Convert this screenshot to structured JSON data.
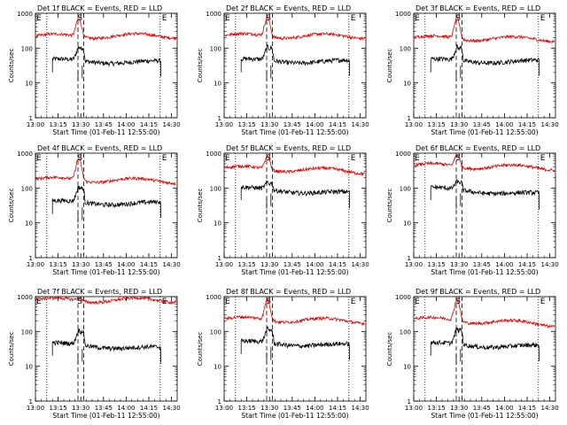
{
  "figure": {
    "start_time_label": "Start Time (01-Feb-11 12:55:00)",
    "ylabel": "Counts/sec",
    "series_names": [
      "Events",
      "LLD"
    ],
    "series_colors": {
      "events": "#000000",
      "lld": "#e00000"
    },
    "marker_letters": {
      "start": "S",
      "end": "E"
    }
  },
  "chart_data": [
    {
      "type": "line",
      "title": "Det 1f BLACK = Events, RED = LLD",
      "xlabel": "Start Time (01-Feb-11 12:55:00)",
      "ylabel": "Counts/sec",
      "x_tick_labels": [
        "13:00",
        "13:15",
        "13:30",
        "13:45",
        "14:00",
        "14:15",
        "14:30"
      ],
      "y_tick_labels": [
        "1",
        "10",
        "100",
        "1000"
      ],
      "ylim": [
        1,
        1000
      ],
      "xlim_minutes": [
        0,
        100
      ],
      "series": [
        {
          "name": "Events",
          "color": "#000000",
          "values": {
            "base": 45,
            "peak": 110,
            "end": 38
          }
        },
        {
          "name": "LLD",
          "color": "#e00000",
          "values": {
            "base": 220,
            "peak": 700,
            "end": 230
          }
        }
      ]
    },
    {
      "type": "line",
      "title": "Det 2f BLACK = Events, RED = LLD",
      "xlabel": "Start Time (01-Feb-11 12:55:00)",
      "ylabel": "Counts/sec",
      "x_tick_labels": [
        "13:00",
        "13:15",
        "13:30",
        "13:45",
        "14:00",
        "14:15",
        "14:30"
      ],
      "y_tick_labels": [
        "1",
        "10",
        "100",
        "1000"
      ],
      "ylim": [
        1,
        1000
      ],
      "xlim_minutes": [
        0,
        100
      ],
      "series": [
        {
          "name": "Events",
          "color": "#000000",
          "values": {
            "base": 45,
            "peak": 110,
            "end": 40
          }
        },
        {
          "name": "LLD",
          "color": "#e00000",
          "values": {
            "base": 230,
            "peak": 750,
            "end": 220
          }
        }
      ]
    },
    {
      "type": "line",
      "title": "Det 3f BLACK = Events, RED = LLD",
      "xlabel": "Start Time (01-Feb-11 12:55:00)",
      "ylabel": "Counts/sec",
      "x_tick_labels": [
        "13:00",
        "13:15",
        "13:30",
        "13:45",
        "14:00",
        "14:15",
        "14:30"
      ],
      "y_tick_labels": [
        "1",
        "10",
        "100",
        "1000"
      ],
      "ylim": [
        1,
        1000
      ],
      "xlim_minutes": [
        0,
        100
      ],
      "series": [
        {
          "name": "Events",
          "color": "#000000",
          "values": {
            "base": 45,
            "peak": 110,
            "end": 40
          }
        },
        {
          "name": "LLD",
          "color": "#e00000",
          "values": {
            "base": 200,
            "peak": 700,
            "end": 180
          }
        }
      ]
    },
    {
      "type": "line",
      "title": "Det 4f BLACK = Events, RED = LLD",
      "xlabel": "Start Time (01-Feb-11 12:55:00)",
      "ylabel": "Counts/sec",
      "x_tick_labels": [
        "13:00",
        "13:15",
        "13:30",
        "13:45",
        "14:00",
        "14:15",
        "14:30"
      ],
      "y_tick_labels": [
        "1",
        "10",
        "100",
        "1000"
      ],
      "ylim": [
        1,
        1000
      ],
      "xlim_minutes": [
        0,
        100
      ],
      "series": [
        {
          "name": "Events",
          "color": "#000000",
          "values": {
            "base": 40,
            "peak": 110,
            "end": 35
          }
        },
        {
          "name": "LLD",
          "color": "#e00000",
          "values": {
            "base": 180,
            "peak": 700,
            "end": 160
          }
        }
      ]
    },
    {
      "type": "line",
      "title": "Det 5f BLACK = Events, RED = LLD",
      "xlabel": "Start Time (01-Feb-11 12:55:00)",
      "ylabel": "Counts/sec",
      "x_tick_labels": [
        "13:00",
        "13:15",
        "13:30",
        "13:45",
        "14:00",
        "14:15",
        "14:30"
      ],
      "y_tick_labels": [
        "1",
        "10",
        "100",
        "1000"
      ],
      "ylim": [
        1,
        1000
      ],
      "xlim_minutes": [
        0,
        100
      ],
      "series": [
        {
          "name": "Events",
          "color": "#000000",
          "values": {
            "base": 100,
            "peak": 150,
            "end": 65
          }
        },
        {
          "name": "LLD",
          "color": "#e00000",
          "values": {
            "base": 380,
            "peak": 800,
            "end": 300
          }
        }
      ]
    },
    {
      "type": "line",
      "title": "Det 6f BLACK = Events, RED = LLD",
      "xlabel": "Start Time (01-Feb-11 12:55:00)",
      "ylabel": "Counts/sec",
      "x_tick_labels": [
        "13:00",
        "13:15",
        "13:30",
        "13:45",
        "14:00",
        "14:15",
        "14:30"
      ],
      "y_tick_labels": [
        "1",
        "10",
        "100",
        "1000"
      ],
      "ylim": [
        1,
        1000
      ],
      "xlim_minutes": [
        0,
        100
      ],
      "series": [
        {
          "name": "Events",
          "color": "#000000",
          "values": {
            "base": 100,
            "peak": 160,
            "end": 60
          }
        },
        {
          "name": "LLD",
          "color": "#e00000",
          "values": {
            "base": 450,
            "peak": 900,
            "end": 380
          }
        }
      ]
    },
    {
      "type": "line",
      "title": "Det 7f BLACK = Events, RED = LLD",
      "xlabel": "Start Time (01-Feb-11 12:55:00)",
      "ylabel": "Counts/sec",
      "x_tick_labels": [
        "13:00",
        "13:15",
        "13:30",
        "13:45",
        "14:00",
        "14:15",
        "14:30"
      ],
      "y_tick_labels": [
        "1",
        "10",
        "100",
        "1000"
      ],
      "ylim": [
        1,
        1000
      ],
      "xlim_minutes": [
        0,
        100
      ],
      "series": [
        {
          "name": "Events",
          "color": "#000000",
          "values": {
            "base": 45,
            "peak": 110,
            "end": 30
          }
        },
        {
          "name": "LLD",
          "color": "#e00000",
          "values": {
            "base": 800,
            "peak": 950,
            "end": 800
          }
        }
      ]
    },
    {
      "type": "line",
      "title": "Det 8f BLACK = Events, RED = LLD",
      "xlabel": "Start Time (01-Feb-11 12:55:00)",
      "ylabel": "Counts/sec",
      "x_tick_labels": [
        "13:00",
        "13:15",
        "13:30",
        "13:45",
        "14:00",
        "14:15",
        "14:30"
      ],
      "y_tick_labels": [
        "1",
        "10",
        "100",
        "1000"
      ],
      "ylim": [
        1,
        1000
      ],
      "xlim_minutes": [
        0,
        100
      ],
      "series": [
        {
          "name": "Events",
          "color": "#000000",
          "values": {
            "base": 50,
            "peak": 120,
            "end": 38
          }
        },
        {
          "name": "LLD",
          "color": "#e00000",
          "values": {
            "base": 230,
            "peak": 800,
            "end": 200
          }
        }
      ]
    },
    {
      "type": "line",
      "title": "Det 9f BLACK = Events, RED = LLD",
      "xlabel": "Start Time (01-Feb-11 12:55:00)",
      "ylabel": "Counts/sec",
      "x_tick_labels": [
        "13:00",
        "13:15",
        "13:30",
        "13:45",
        "14:00",
        "14:15",
        "14:30"
      ],
      "y_tick_labels": [
        "1",
        "10",
        "100",
        "1000"
      ],
      "ylim": [
        1,
        1000
      ],
      "xlim_minutes": [
        0,
        100
      ],
      "series": [
        {
          "name": "Events",
          "color": "#000000",
          "values": {
            "base": 45,
            "peak": 120,
            "end": 35
          }
        },
        {
          "name": "LLD",
          "color": "#e00000",
          "values": {
            "base": 230,
            "peak": 800,
            "end": 160
          }
        }
      ]
    }
  ]
}
